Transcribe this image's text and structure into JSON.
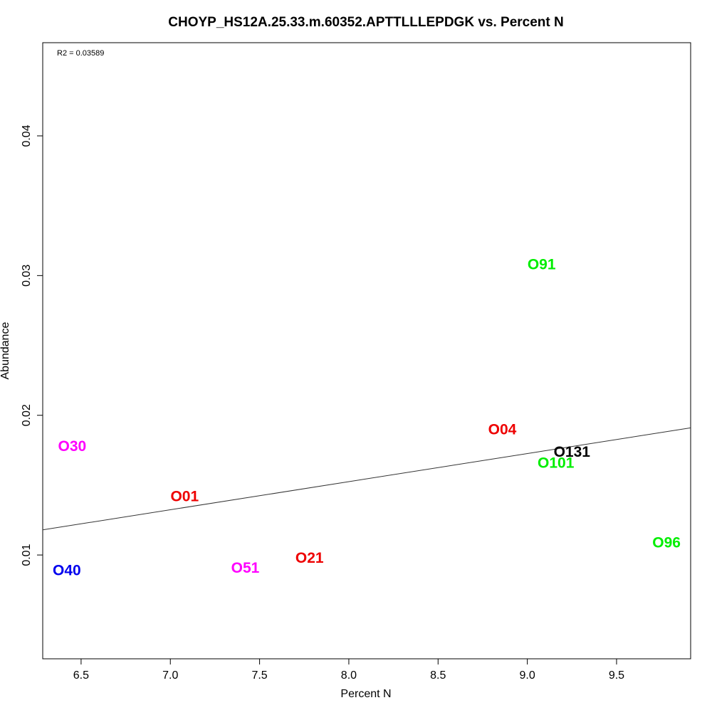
{
  "chart_data": {
    "type": "scatter",
    "title": "CHOYP_HS12A.25.33.m.60352.APTTLLLEPDGK vs. Percent N",
    "xlabel": "Percent N",
    "ylabel": "Abundance",
    "xlim": [
      6.285,
      9.915
    ],
    "ylim": [
      0.00257,
      0.04667
    ],
    "x_ticks": [
      6.5,
      7.0,
      7.5,
      8.0,
      8.5,
      9.0,
      9.5
    ],
    "x_tick_labels": [
      "6.5",
      "7.0",
      "7.5",
      "8.0",
      "8.5",
      "9.0",
      "9.5"
    ],
    "y_ticks": [
      0.01,
      0.02,
      0.03,
      0.04
    ],
    "y_tick_labels": [
      "0.01",
      "0.02",
      "0.03",
      "0.04"
    ],
    "annotation": "R2 = 0.03589",
    "grid": false,
    "legend": "none",
    "points": [
      {
        "label": "O30",
        "x": 6.45,
        "y": 0.0178,
        "color": "#ff00ff"
      },
      {
        "label": "O40",
        "x": 6.42,
        "y": 0.0089,
        "color": "#0000ee"
      },
      {
        "label": "O01",
        "x": 7.08,
        "y": 0.0142,
        "color": "#ee0000"
      },
      {
        "label": "O51",
        "x": 7.42,
        "y": 0.0091,
        "color": "#ff00ff"
      },
      {
        "label": "O21",
        "x": 7.78,
        "y": 0.0098,
        "color": "#ee0000"
      },
      {
        "label": "O04",
        "x": 8.86,
        "y": 0.019,
        "color": "#ee0000"
      },
      {
        "label": "O91",
        "x": 9.08,
        "y": 0.0308,
        "color": "#00ee00"
      },
      {
        "label": "O131",
        "x": 9.25,
        "y": 0.0174,
        "color": "#000000"
      },
      {
        "label": "O101",
        "x": 9.16,
        "y": 0.0166,
        "color": "#00ee00"
      },
      {
        "label": "O96",
        "x": 9.78,
        "y": 0.0109,
        "color": "#00ee00"
      }
    ],
    "trendline": {
      "x": [
        6.285,
        9.915
      ],
      "y": [
        0.0118,
        0.0191
      ]
    }
  }
}
